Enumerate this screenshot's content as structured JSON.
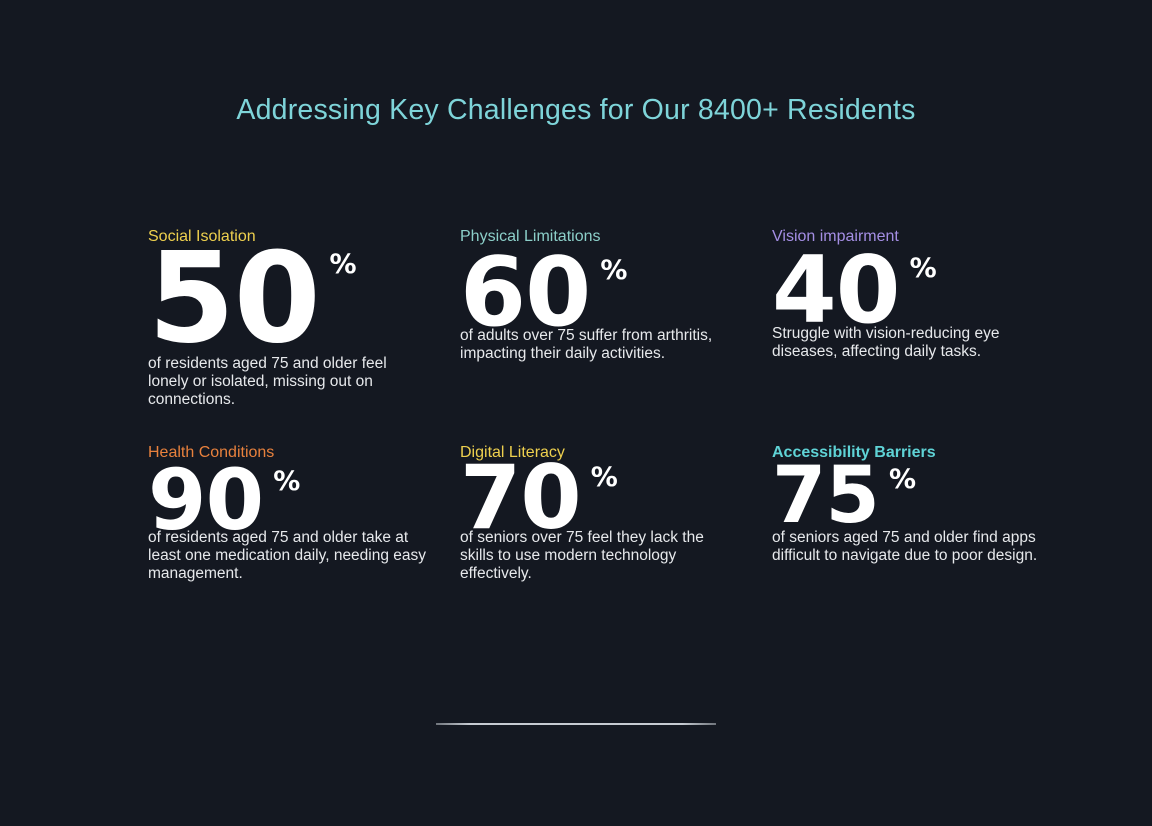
{
  "page": {
    "title": "Addressing Key Challenges for Our 8400+ Residents",
    "background_color": "#141821",
    "title_color": "#7ed4d9",
    "number_color": "#ffffff",
    "description_color": "#e7e9ec",
    "divider_color": "#c6cbd2"
  },
  "stats": [
    {
      "label": "Social Isolation",
      "label_color": "#eed04e",
      "value": "50",
      "unit": "%",
      "description": "of residents aged 75 and older feel lonely or isolated, missing out on connections."
    },
    {
      "label": "Physical Limitations",
      "label_color": "#8ccfc9",
      "value": "60",
      "unit": "%",
      "description": "of adults over 75 suffer from arthritis, impacting their daily activities."
    },
    {
      "label": "Vision impairment",
      "label_color": "#a48ee4",
      "value": "40",
      "unit": "%",
      "description": "Struggle with vision-reducing eye diseases, affecting daily tasks."
    },
    {
      "label": "Health Conditions",
      "label_color": "#e8813d",
      "value": "90",
      "unit": "%",
      "description": "of residents aged 75 and older take at least one medication daily, needing easy management."
    },
    {
      "label": "Digital Literacy",
      "label_color": "#eed04e",
      "value": "70",
      "unit": "%",
      "description": "of seniors over 75 feel they lack the skills to use modern technology effectively."
    },
    {
      "label": "Accessibility Barriers",
      "label_color": "#5fd3d6",
      "value": "75",
      "unit": "%",
      "description": "of seniors aged 75 and older find apps difficult to navigate due to poor design."
    }
  ],
  "chart_data": {
    "type": "table",
    "title": "Addressing Key Challenges for Our 8400+ Residents",
    "categories": [
      "Social Isolation",
      "Physical Limitations",
      "Vision impairment",
      "Health Conditions",
      "Digital Literacy",
      "Accessibility Barriers"
    ],
    "values": [
      50,
      60,
      40,
      90,
      70,
      75
    ],
    "unit": "%",
    "layout": "2 rows x 3 columns of big-number stat callouts on dark background"
  }
}
